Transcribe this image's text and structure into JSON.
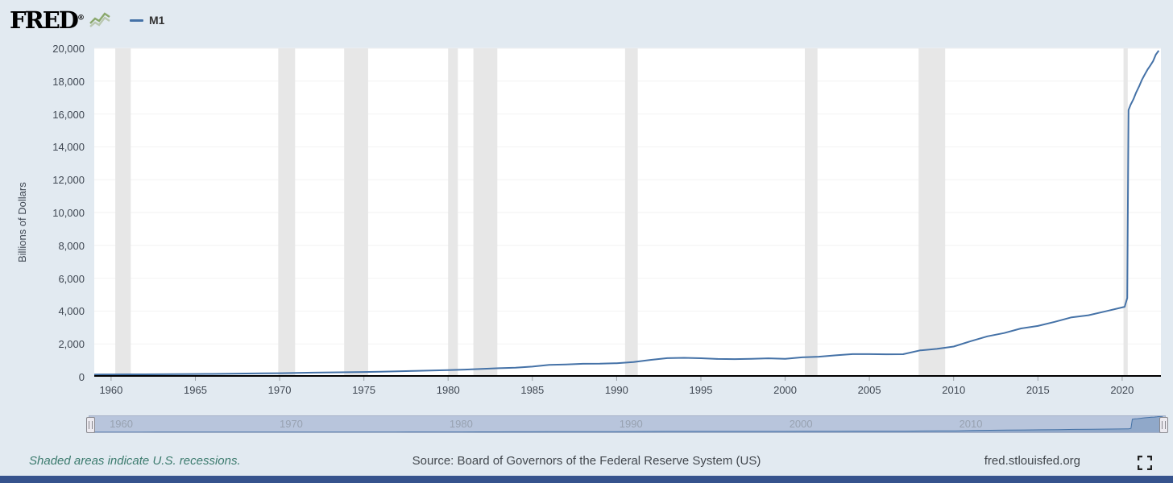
{
  "header": {
    "logo": {
      "text": "FRED",
      "registered": "®"
    },
    "legend": {
      "series_label": "M1"
    }
  },
  "chart_data": {
    "type": "line",
    "ylabel": "Billions of Dollars",
    "x_range": [
      1959,
      2022.3
    ],
    "y_range": [
      0,
      20000
    ],
    "y_ticks": [
      0,
      2000,
      4000,
      6000,
      8000,
      10000,
      12000,
      14000,
      16000,
      18000,
      20000
    ],
    "x_ticks": [
      1960,
      1965,
      1970,
      1975,
      1980,
      1985,
      1990,
      1995,
      2000,
      2005,
      2010,
      2015,
      2020
    ],
    "grid": true,
    "recession_color": "#e7e7e7",
    "recessions": [
      [
        1960.25,
        1961.17
      ],
      [
        1969.92,
        1970.92
      ],
      [
        1973.83,
        1975.25
      ],
      [
        1980.0,
        1980.58
      ],
      [
        1981.5,
        1982.92
      ],
      [
        1990.5,
        1991.25
      ],
      [
        2001.17,
        2001.92
      ],
      [
        2007.92,
        2009.5
      ],
      [
        2020.08,
        2020.33
      ]
    ],
    "series": [
      {
        "name": "M1",
        "color": "#4572a7",
        "points": [
          [
            1959.0,
            139
          ],
          [
            1960,
            140
          ],
          [
            1961,
            145
          ],
          [
            1962,
            147
          ],
          [
            1963,
            153
          ],
          [
            1964,
            160
          ],
          [
            1965,
            167
          ],
          [
            1966,
            172
          ],
          [
            1967,
            183
          ],
          [
            1968,
            197
          ],
          [
            1969,
            204
          ],
          [
            1970,
            214
          ],
          [
            1971,
            228
          ],
          [
            1972,
            249
          ],
          [
            1973,
            263
          ],
          [
            1974,
            274
          ],
          [
            1975,
            287
          ],
          [
            1976,
            306
          ],
          [
            1977,
            331
          ],
          [
            1978,
            358
          ],
          [
            1979,
            382
          ],
          [
            1980,
            409
          ],
          [
            1981,
            436
          ],
          [
            1982,
            474
          ],
          [
            1983,
            521
          ],
          [
            1984,
            552
          ],
          [
            1985,
            620
          ],
          [
            1986,
            725
          ],
          [
            1987,
            750
          ],
          [
            1988,
            787
          ],
          [
            1989,
            793
          ],
          [
            1990,
            825
          ],
          [
            1991,
            897
          ],
          [
            1992,
            1025
          ],
          [
            1993,
            1130
          ],
          [
            1994,
            1150
          ],
          [
            1995,
            1127
          ],
          [
            1996,
            1081
          ],
          [
            1997,
            1072
          ],
          [
            1998,
            1095
          ],
          [
            1999,
            1122
          ],
          [
            2000,
            1088
          ],
          [
            2001,
            1183
          ],
          [
            2002,
            1220
          ],
          [
            2003,
            1306
          ],
          [
            2004,
            1376
          ],
          [
            2005,
            1375
          ],
          [
            2006,
            1367
          ],
          [
            2007,
            1373
          ],
          [
            2008,
            1602
          ],
          [
            2009,
            1694
          ],
          [
            2010,
            1837
          ],
          [
            2011,
            2164
          ],
          [
            2012,
            2460
          ],
          [
            2013,
            2664
          ],
          [
            2014,
            2940
          ],
          [
            2015,
            3094
          ],
          [
            2016,
            3342
          ],
          [
            2017,
            3617
          ],
          [
            2018,
            3744
          ],
          [
            2019,
            3978
          ],
          [
            2020.15,
            4262
          ],
          [
            2020.3,
            4792
          ],
          [
            2020.38,
            16244
          ],
          [
            2020.5,
            16564
          ],
          [
            2020.67,
            16903
          ],
          [
            2020.83,
            17312
          ],
          [
            2021.0,
            17669
          ],
          [
            2021.17,
            18077
          ],
          [
            2021.33,
            18381
          ],
          [
            2021.5,
            18698
          ],
          [
            2021.67,
            18950
          ],
          [
            2021.83,
            19210
          ],
          [
            2022.0,
            19620
          ],
          [
            2022.17,
            19859
          ]
        ]
      }
    ]
  },
  "navigator": {
    "tick_years": [
      1960,
      1970,
      1980,
      1990,
      2000,
      2010
    ]
  },
  "footer": {
    "recession_note": "Shaded areas indicate U.S. recessions.",
    "source": "Source: Board of Governors of the Federal Reserve System (US)",
    "site": "fred.stlouisfed.org"
  }
}
